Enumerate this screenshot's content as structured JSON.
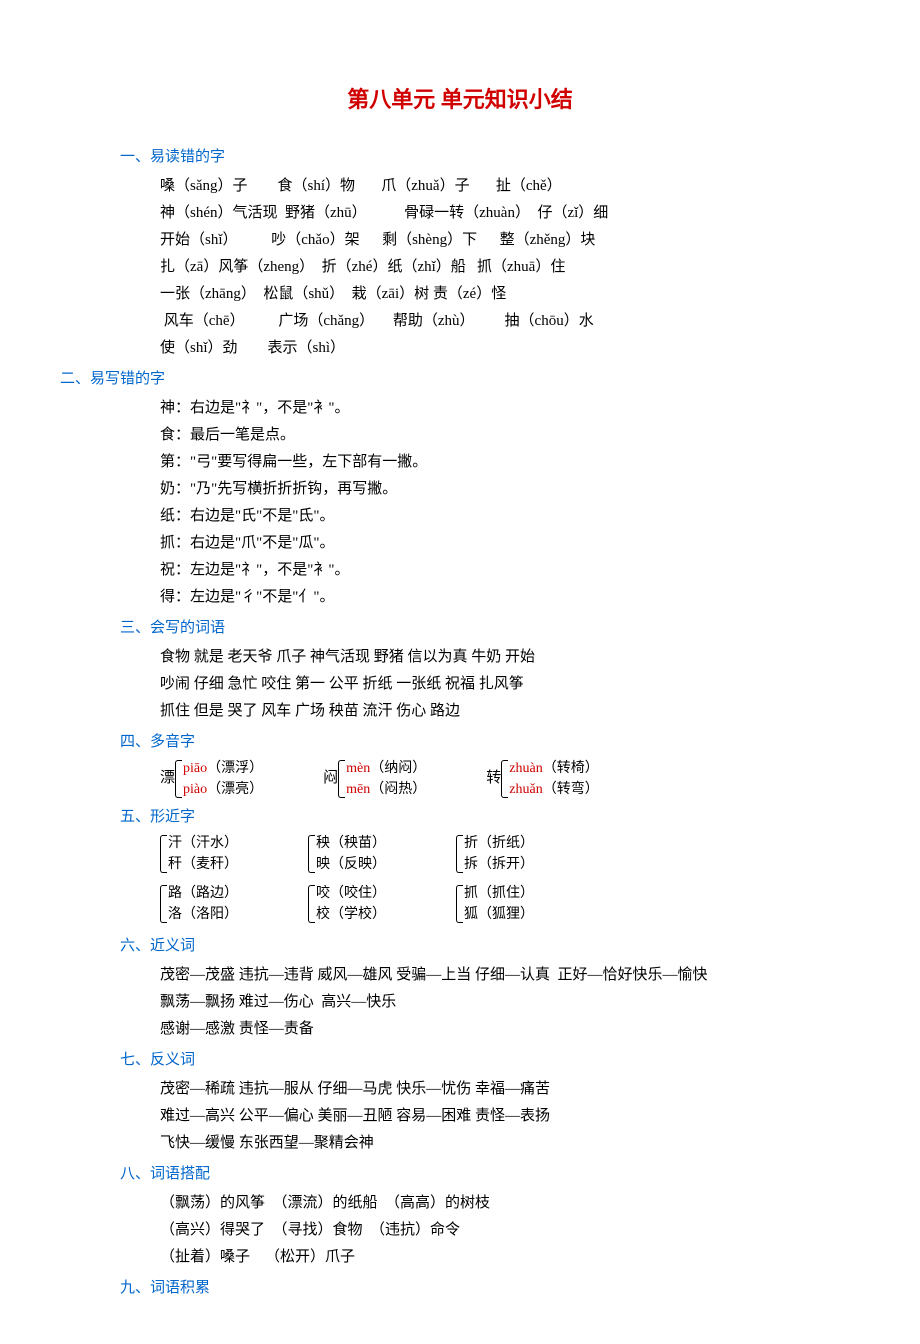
{
  "title": "第八单元  单元知识小结",
  "colors": {
    "title": "#d00000",
    "heading": "#0066cc",
    "pinyin": "#d00000",
    "text": "#000000",
    "background": "#ffffff"
  },
  "typography": {
    "title_fontsize": 22,
    "body_fontsize": 15,
    "font_family": "SimSun"
  },
  "sections": {
    "s1": {
      "heading": "一、易读错的字",
      "lines": [
        "嗓（sǎng）子        食（shí）物       爪（zhuǎ）子       扯（chě）",
        "神（shén）气活现  野猪（zhū）          骨碌一转（zhuàn）  仔（zǐ）细",
        "开始（shǐ）         吵（chǎo）架      剩（shèng）下      整（zhěng）块",
        "扎（zā）风筝（zheng）  折（zhé）纸（zhǐ）船   抓（zhuā）住",
        "一张（zhāng）  松鼠（shǔ）  栽（zāi）树 责（zé）怪",
        " 风车（chē）         广场（chǎng）     帮助（zhù）        抽（chōu）水",
        "使（shǐ）劲        表示（shì）"
      ]
    },
    "s2": {
      "heading": "二、易写错的字",
      "lines": [
        "神：右边是\"礻\"，不是\"衤\"。",
        "食：最后一笔是点。",
        "第：\"弓\"要写得扁一些，左下部有一撇。",
        "奶：\"乃\"先写横折折折钩，再写撇。",
        "纸：右边是\"氏\"不是\"氐\"。",
        "抓：右边是\"爪\"不是\"瓜\"。",
        "祝：左边是\"礻\"，不是\"衤\"。",
        "得：左边是\"彳\"不是\"亻\"。"
      ]
    },
    "s3": {
      "heading": "三、会写的词语",
      "lines": [
        "食物 就是 老天爷 爪子 神气活现 野猪 信以为真 牛奶 开始",
        "吵闹 仔细 急忙 咬住 第一 公平 折纸 一张纸 祝福 扎风筝",
        "抓住 但是 哭了 风车 广场 秧苗 流汗 伤心 路边"
      ]
    },
    "s4": {
      "heading": "四、多音字",
      "items": [
        {
          "char": "漂",
          "a_pinyin": "piāo",
          "a_word": "（漂浮）",
          "b_pinyin": "piào",
          "b_word": "（漂亮）"
        },
        {
          "char": "闷",
          "a_pinyin": "mèn",
          "a_word": "（纳闷）",
          "b_pinyin": "mēn",
          "b_word": "（闷热）"
        },
        {
          "char": "转",
          "a_pinyin": "zhuàn",
          "a_word": "（转椅）",
          "b_pinyin": "zhuǎn",
          "b_word": "（转弯）"
        }
      ]
    },
    "s5": {
      "heading": "五、形近字",
      "rows": [
        [
          {
            "a": "汗（汗水）",
            "b": "秆（麦秆）"
          },
          {
            "a": "秧（秧苗）",
            "b": "映（反映）"
          },
          {
            "a": "折（折纸）",
            "b": "拆（拆开）"
          }
        ],
        [
          {
            "a": "路（路边）",
            "b": "洛（洛阳）"
          },
          {
            "a": "咬（咬住）",
            "b": "校（学校）"
          },
          {
            "a": "抓（抓住）",
            "b": "狐（狐狸）"
          }
        ]
      ]
    },
    "s6": {
      "heading": "六、近义词",
      "lines": [
        "茂密—茂盛 违抗—违背 威风—雄风 受骗—上当 仔细—认真  正好—恰好快乐—愉快",
        "飘荡—飘扬 难过—伤心  高兴—快乐",
        "感谢—感激 责怪—责备"
      ]
    },
    "s7": {
      "heading": "七、反义词",
      "lines": [
        "茂密—稀疏 违抗—服从 仔细—马虎 快乐—忧伤 幸福—痛苦",
        "难过—高兴 公平—偏心 美丽—丑陋 容易—困难 责怪—表扬",
        "飞快—缓慢 东张西望—聚精会神"
      ]
    },
    "s8": {
      "heading": "八、词语搭配",
      "lines": [
        "（飘荡）的风筝  （漂流）的纸船  （高高）的树枝",
        "（高兴）得哭了  （寻找）食物  （违抗）命令",
        "（扯着）嗓子    （松开）爪子"
      ]
    },
    "s9": {
      "heading": "九、词语积累"
    }
  }
}
